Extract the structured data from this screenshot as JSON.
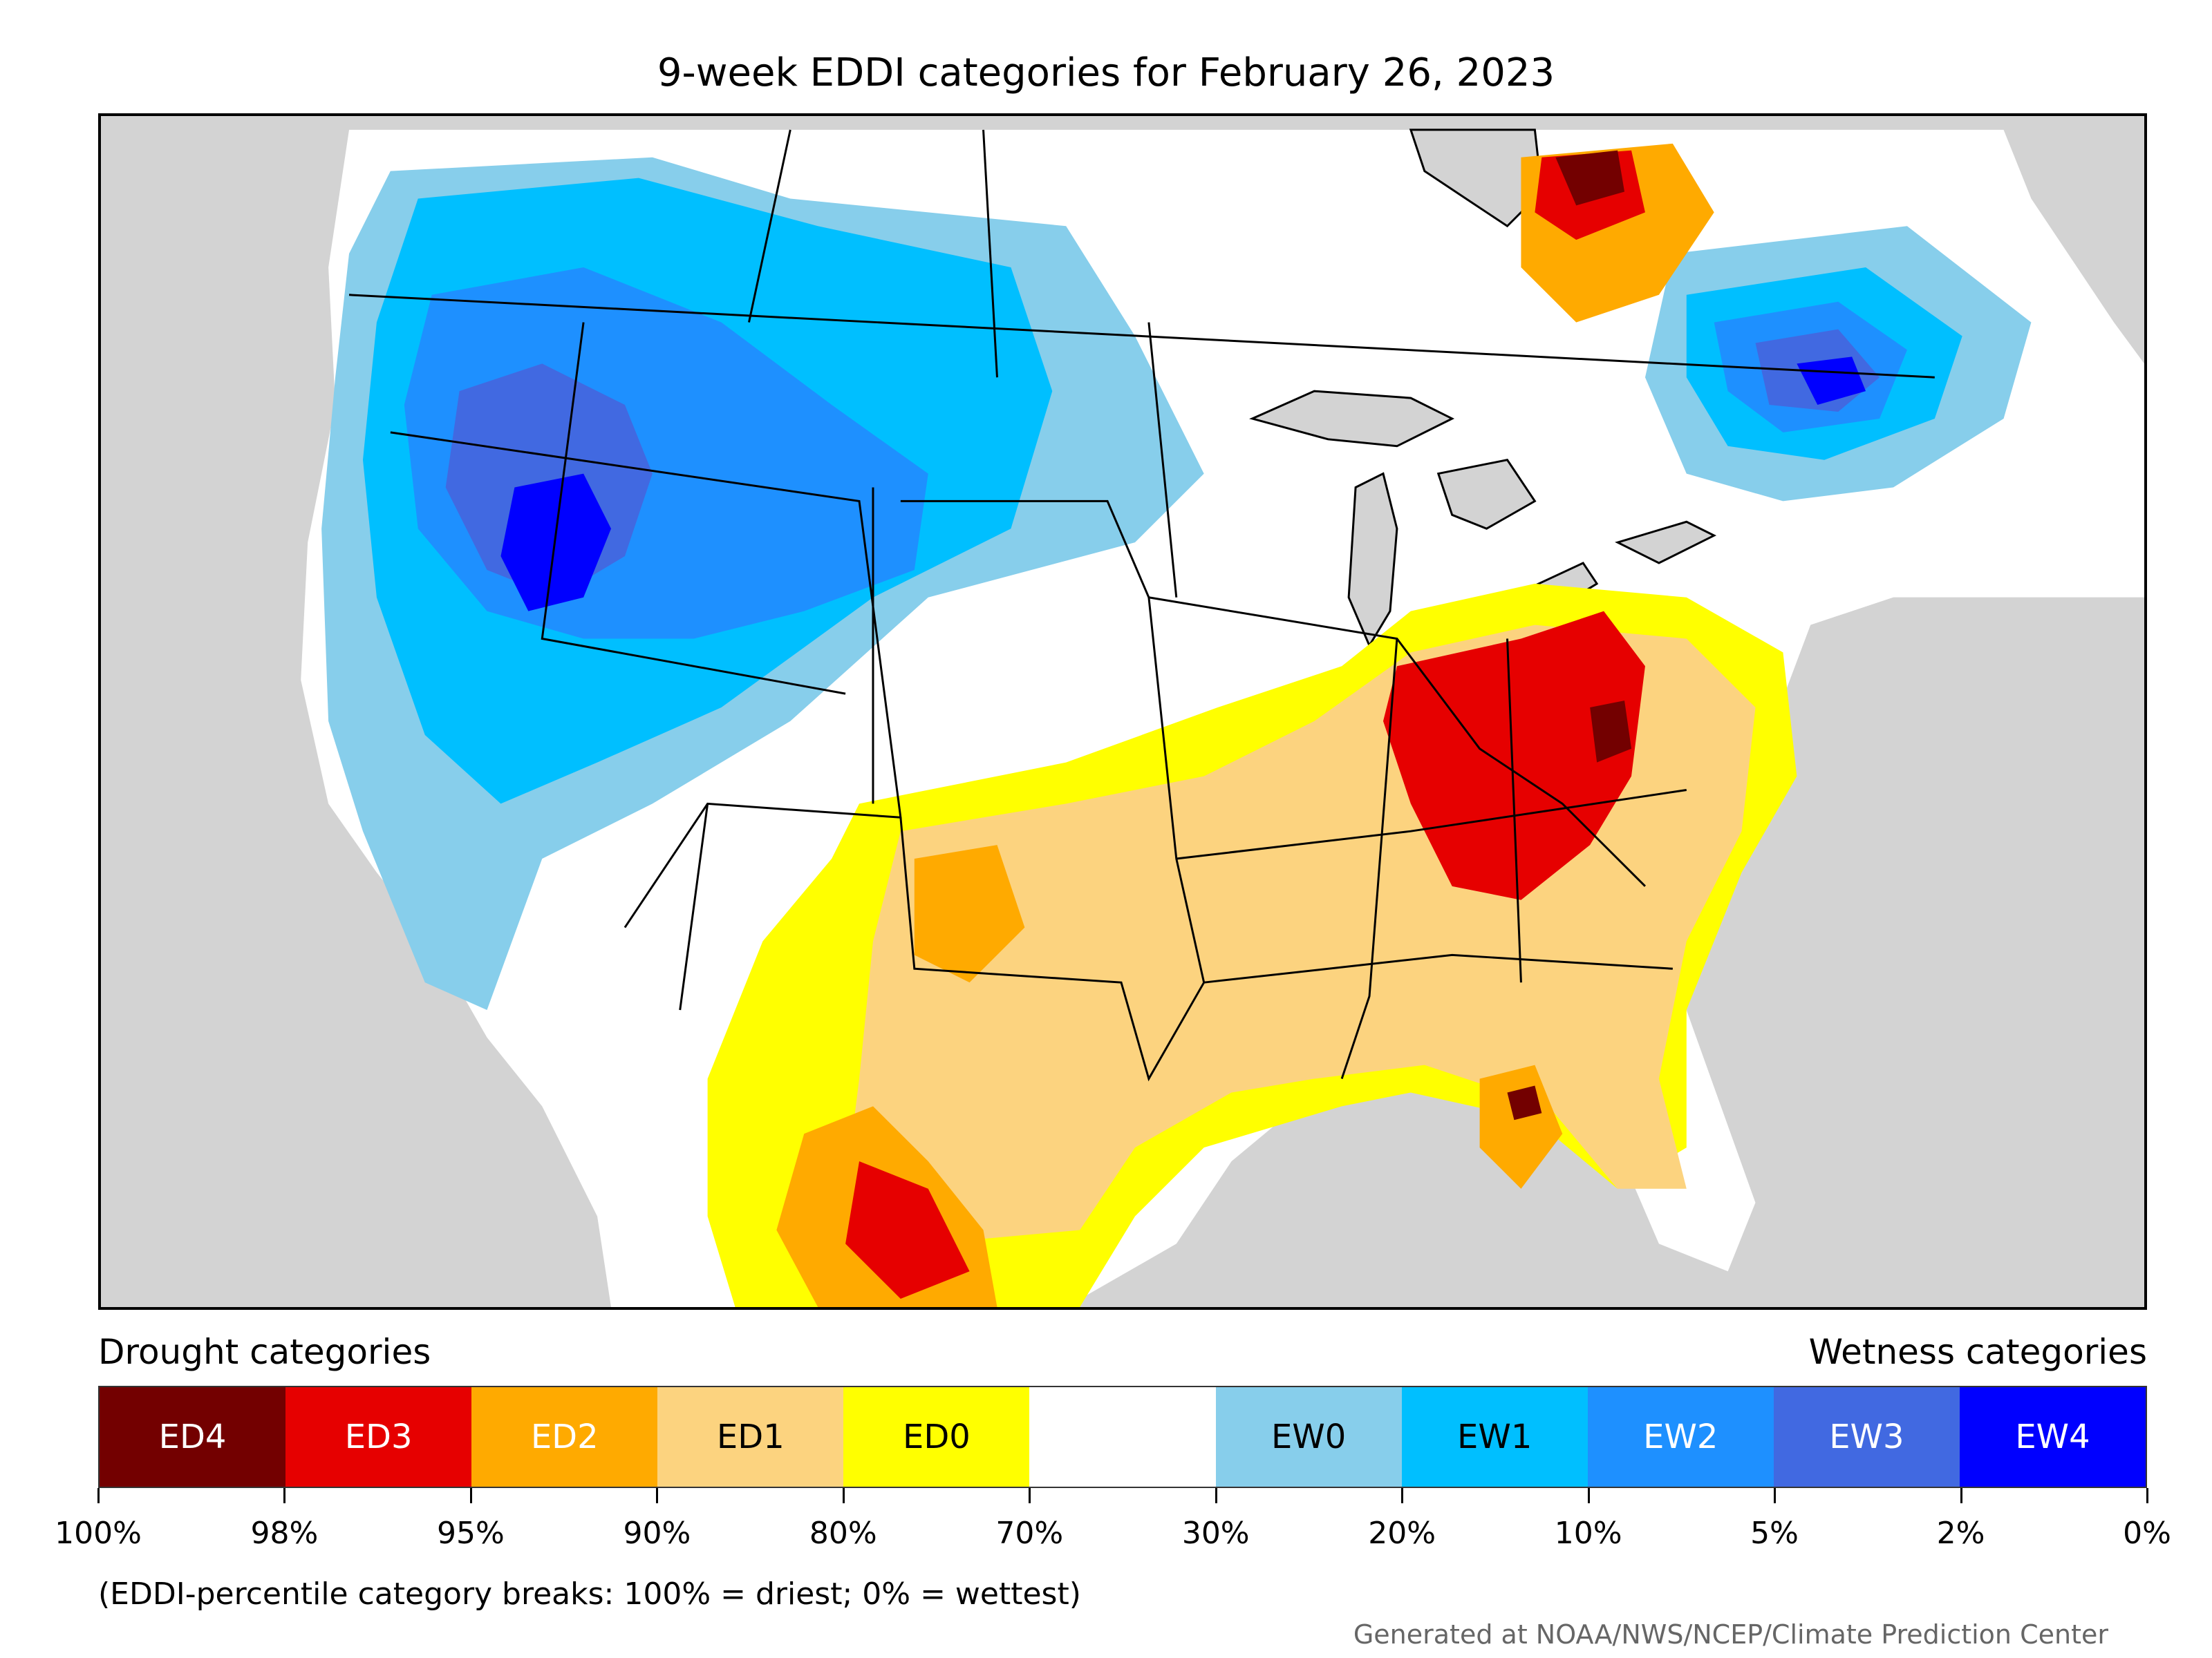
{
  "title": "9-week EDDI categories for February 26, 2023",
  "map": {
    "colors": {
      "background": "#d3d3d3",
      "white": "#ffffff",
      "EW0": "#87ceeb",
      "EW1": "#00bfff",
      "EW2": "#1e90ff",
      "EW3": "#4169e1",
      "EW4": "#0000ff",
      "ED0": "#ffff00",
      "ED1": "#fcd37f",
      "ED2": "#ffaa00",
      "ED3": "#e60000",
      "ED4": "#730000",
      "lines": "#000000"
    }
  },
  "legend": {
    "drought_title": "Drought categories",
    "wetness_title": "Wetness categories",
    "categories": [
      {
        "label": "ED4",
        "color": "#730000",
        "text_color": "#ffffff"
      },
      {
        "label": "ED3",
        "color": "#e60000",
        "text_color": "#ffffff"
      },
      {
        "label": "ED2",
        "color": "#ffaa00",
        "text_color": "#ffffff"
      },
      {
        "label": "ED1",
        "color": "#fcd37f",
        "text_color": "#000000"
      },
      {
        "label": "ED0",
        "color": "#ffff00",
        "text_color": "#000000"
      },
      {
        "label": "",
        "color": "#ffffff",
        "text_color": "#000000"
      },
      {
        "label": "EW0",
        "color": "#87ceeb",
        "text_color": "#000000"
      },
      {
        "label": "EW1",
        "color": "#00bfff",
        "text_color": "#000000"
      },
      {
        "label": "EW2",
        "color": "#1e90ff",
        "text_color": "#ffffff"
      },
      {
        "label": "EW3",
        "color": "#4169e1",
        "text_color": "#ffffff"
      },
      {
        "label": "EW4",
        "color": "#0000ff",
        "text_color": "#ffffff"
      }
    ],
    "ticks": [
      "100%",
      "98%",
      "95%",
      "90%",
      "80%",
      "70%",
      "30%",
      "20%",
      "10%",
      "5%",
      "2%",
      "0%"
    ]
  },
  "note": "(EDDI-percentile category breaks: 100% = driest; 0% = wettest)",
  "credit": "Generated at NOAA/NWS/NCEP/Climate Prediction Center"
}
